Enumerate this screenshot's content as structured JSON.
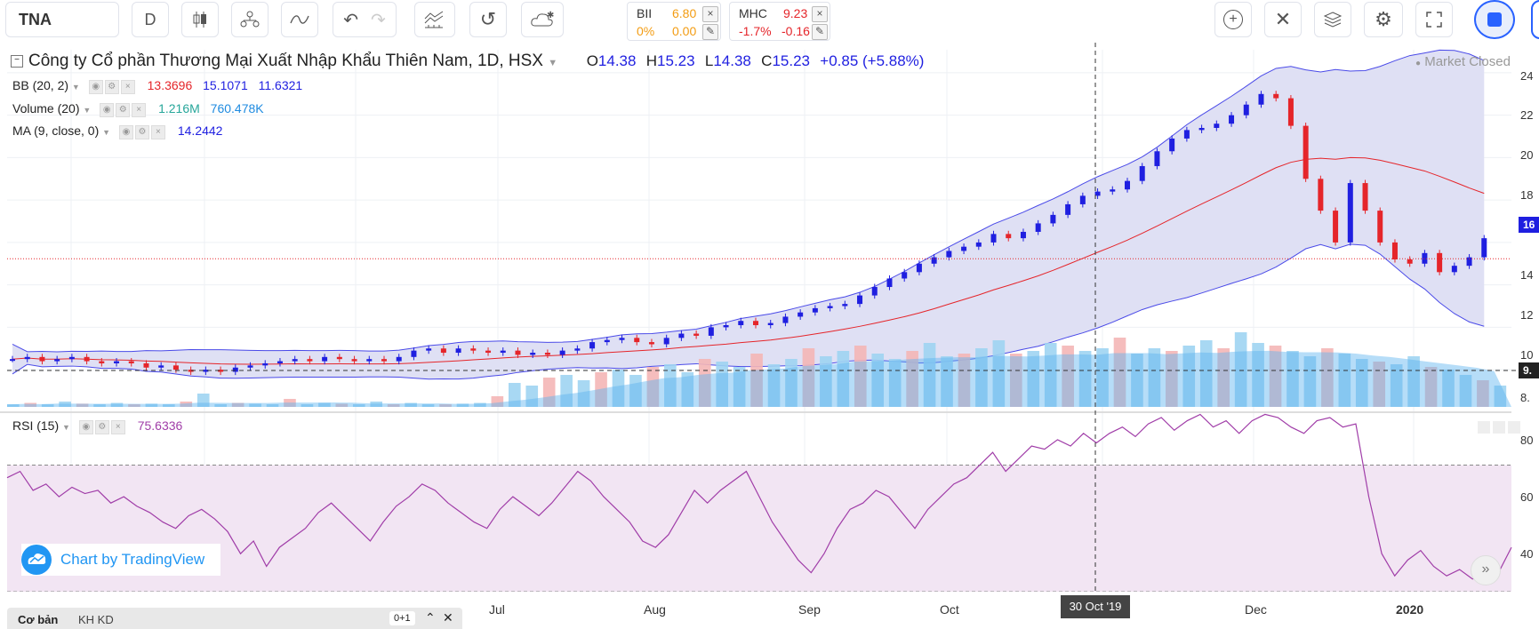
{
  "toolbar": {
    "symbol": "TNA",
    "interval": "D",
    "compare": [
      {
        "ticker": "BII",
        "price": "6.80",
        "pct": "0%",
        "change": "0.00"
      },
      {
        "ticker": "MHC",
        "price": "9.23",
        "pct": "-1.7%",
        "change": "-0.16"
      }
    ]
  },
  "legend": {
    "title": "Công ty Cổ phần Thương Mại Xuất Nhập Khẩu Thiên Nam, 1D, HSX",
    "o_label": "O",
    "o": "14.38",
    "h_label": "H",
    "h": "15.23",
    "l_label": "L",
    "l": "14.38",
    "c_label": "C",
    "c": "15.23",
    "change": "+0.85 (+5.88%)",
    "market_status": "Market Closed",
    "bb_name": "BB (20, 2)",
    "bb_v1": "13.3696",
    "bb_v2": "15.1071",
    "bb_v3": "11.6321",
    "vol_name": "Volume (20)",
    "vol_v1": "1.216M",
    "vol_v2": "760.478K",
    "ma_name": "MA (9, close, 0)",
    "ma_v1": "14.2442",
    "rsi_name": "RSI (15)",
    "rsi_v1": "75.6336"
  },
  "watermark": "Chart by TradingView",
  "x_axis": {
    "months": [
      "Jul",
      "Aug",
      "Sep",
      "Oct",
      "Dec",
      "2020"
    ],
    "crosshair_label": "30 Oct '19"
  },
  "y_axis": {
    "price_labels": [
      "24",
      "22",
      "20",
      "18",
      "16",
      "14",
      "12",
      "10"
    ],
    "last_price_tag": "16",
    "crosshair_price": "9.",
    "vol_label": "8.",
    "rsi_labels": [
      "80",
      "60",
      "40"
    ]
  },
  "bottom_tabs": {
    "tab1": "Cơ bản",
    "tab2": "KH KD",
    "badge": "0+1"
  },
  "colors": {
    "up": "#1f1fe0",
    "down": "#e5252a",
    "band": "#dfe0f4",
    "rsi": "#a03da8",
    "rsi_fill": "#f2e5f3"
  },
  "chart_data": [
    {
      "type": "candlestick",
      "title": "Công ty Cổ phần Thương Mại Xuất Nhập Khẩu Thiên Nam, 1D, HSX",
      "x_range": [
        "2019-05",
        "2020-01"
      ],
      "ylim": [
        9,
        24.5
      ],
      "close": [
        10.5,
        10.6,
        10.4,
        10.5,
        10.6,
        10.4,
        10.3,
        10.4,
        10.3,
        10.1,
        10.2,
        10.0,
        9.9,
        10.0,
        9.9,
        10.1,
        10.2,
        10.3,
        10.4,
        10.5,
        10.4,
        10.6,
        10.5,
        10.4,
        10.5,
        10.4,
        10.6,
        10.9,
        11.0,
        10.8,
        11.0,
        10.9,
        10.8,
        10.9,
        10.7,
        10.8,
        10.7,
        10.9,
        11.0,
        11.3,
        11.4,
        11.5,
        11.3,
        11.2,
        11.5,
        11.7,
        11.6,
        12.0,
        12.1,
        12.3,
        12.1,
        12.2,
        12.5,
        12.7,
        12.9,
        13.0,
        13.1,
        13.5,
        13.9,
        14.3,
        14.6,
        15.0,
        15.3,
        15.6,
        15.8,
        16.0,
        16.4,
        16.2,
        16.5,
        16.9,
        17.3,
        17.8,
        18.2,
        18.4,
        18.5,
        18.9,
        19.6,
        20.3,
        20.9,
        21.3,
        21.4,
        21.6,
        22.0,
        22.5,
        23.0,
        22.8,
        21.5,
        19.0,
        17.5,
        16.0,
        18.8,
        17.5,
        16.0,
        15.2,
        15.0,
        15.5,
        14.6,
        14.9,
        15.3,
        16.2
      ],
      "bb_upper_last": 15.1071,
      "bb_lower_last": 11.6321,
      "ma_last": 14.2442
    },
    {
      "type": "bar",
      "title": "Volume (20)",
      "values": [
        0.1,
        0.15,
        0.1,
        0.2,
        0.12,
        0.1,
        0.15,
        0.1,
        0.12,
        0.1,
        0.2,
        0.5,
        0.1,
        0.15,
        0.12,
        0.1,
        0.3,
        0.1,
        0.15,
        0.12,
        0.1,
        0.2,
        0.1,
        0.15,
        0.1,
        0.1,
        0.12,
        0.15,
        0.4,
        0.9,
        0.8,
        1.1,
        1.2,
        1.0,
        1.3,
        1.4,
        1.2,
        1.5,
        1.6,
        1.3,
        1.8,
        1.7,
        1.5,
        2.0,
        1.6,
        1.8,
        2.2,
        1.9,
        2.1,
        2.3,
        2.0,
        1.8,
        2.1,
        2.4,
        1.9,
        2.0,
        2.2,
        2.5,
        2.0,
        2.1,
        2.4,
        2.3,
        2.1,
        2.2,
        2.6,
        2.0,
        2.2,
        2.1,
        2.3,
        2.5,
        2.2,
        2.8,
        2.4,
        2.3,
        2.1,
        1.9,
        2.2,
        2.0,
        1.8,
        1.7,
        1.6,
        1.9,
        1.5,
        1.4,
        1.2,
        1.0,
        0.8
      ],
      "last": "1.216M",
      "ma": "760.478K"
    },
    {
      "type": "line",
      "title": "RSI (15)",
      "ylim": [
        30,
        85
      ],
      "bands": [
        30,
        70
      ],
      "values": [
        66,
        68,
        62,
        64,
        60,
        63,
        61,
        62,
        58,
        60,
        57,
        55,
        52,
        50,
        54,
        56,
        53,
        49,
        42,
        46,
        38,
        44,
        47,
        50,
        55,
        58,
        54,
        50,
        46,
        52,
        57,
        60,
        64,
        62,
        58,
        55,
        52,
        50,
        56,
        60,
        57,
        54,
        58,
        63,
        68,
        65,
        60,
        56,
        52,
        46,
        44,
        48,
        55,
        62,
        58,
        62,
        65,
        68,
        60,
        52,
        46,
        40,
        36,
        42,
        50,
        56,
        58,
        62,
        60,
        55,
        50,
        56,
        60,
        64,
        66,
        70,
        74,
        68,
        72,
        76,
        75,
        78,
        76,
        80,
        77,
        80,
        82,
        79,
        83,
        85,
        81,
        84,
        86,
        82,
        84,
        80,
        84,
        86,
        85,
        82,
        80,
        84,
        85,
        82,
        83,
        60,
        42,
        35,
        40,
        43,
        38,
        35,
        37,
        34,
        35,
        36,
        44
      ]
    }
  ]
}
